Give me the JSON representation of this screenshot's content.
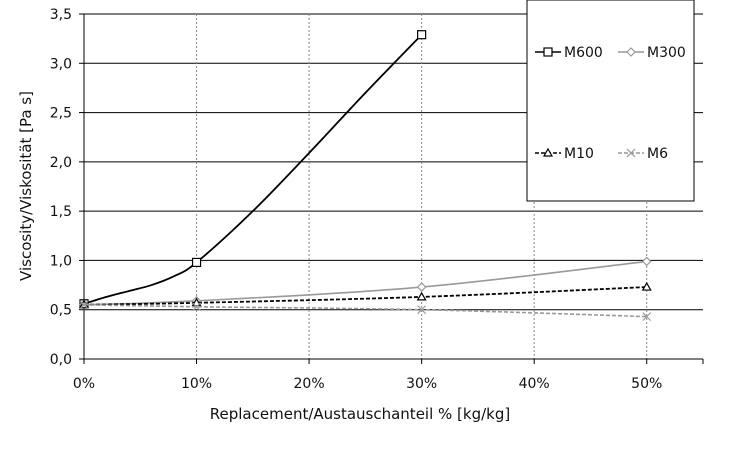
{
  "chart_data": {
    "type": "line",
    "xlabel": "Replacement/Austauschanteil % [kg/kg]",
    "ylabel": "Viscosity/Viskosität [Pa s]",
    "x_ticks": [
      "0%",
      "10%",
      "20%",
      "30%",
      "40%",
      "50%"
    ],
    "y_ticks": [
      "0,0",
      "0,5",
      "1,0",
      "1,5",
      "2,0",
      "2,5",
      "3,0",
      "3,5"
    ],
    "xlim": [
      0,
      55
    ],
    "ylim": [
      0,
      3.5
    ],
    "legend_position": "top-right",
    "grid": {
      "horizontal": "solid",
      "vertical": "dotted"
    },
    "series": [
      {
        "name": "M600",
        "color": "#000000",
        "dash": "solid",
        "marker": "square",
        "x": [
          0,
          10,
          30
        ],
        "y": [
          0.56,
          0.98,
          3.29
        ],
        "curve_x": [
          0,
          2,
          4,
          6,
          8,
          10,
          15,
          20,
          25,
          30
        ],
        "curve_y": [
          0.56,
          0.63,
          0.69,
          0.75,
          0.84,
          0.98,
          1.5,
          2.09,
          2.7,
          3.29
        ]
      },
      {
        "name": "M300",
        "color": "#999999",
        "dash": "solid",
        "marker": "diamond",
        "x": [
          0,
          10,
          30,
          50
        ],
        "y": [
          0.55,
          0.59,
          0.73,
          0.99
        ]
      },
      {
        "name": "M10",
        "color": "#000000",
        "dash": "dashed",
        "marker": "triangle",
        "x": [
          0,
          10,
          30,
          50
        ],
        "y": [
          0.55,
          0.57,
          0.63,
          0.73
        ]
      },
      {
        "name": "M6",
        "color": "#999999",
        "dash": "dashed",
        "marker": "cross",
        "x": [
          0,
          10,
          30,
          50
        ],
        "y": [
          0.55,
          0.53,
          0.5,
          0.43
        ]
      }
    ]
  }
}
